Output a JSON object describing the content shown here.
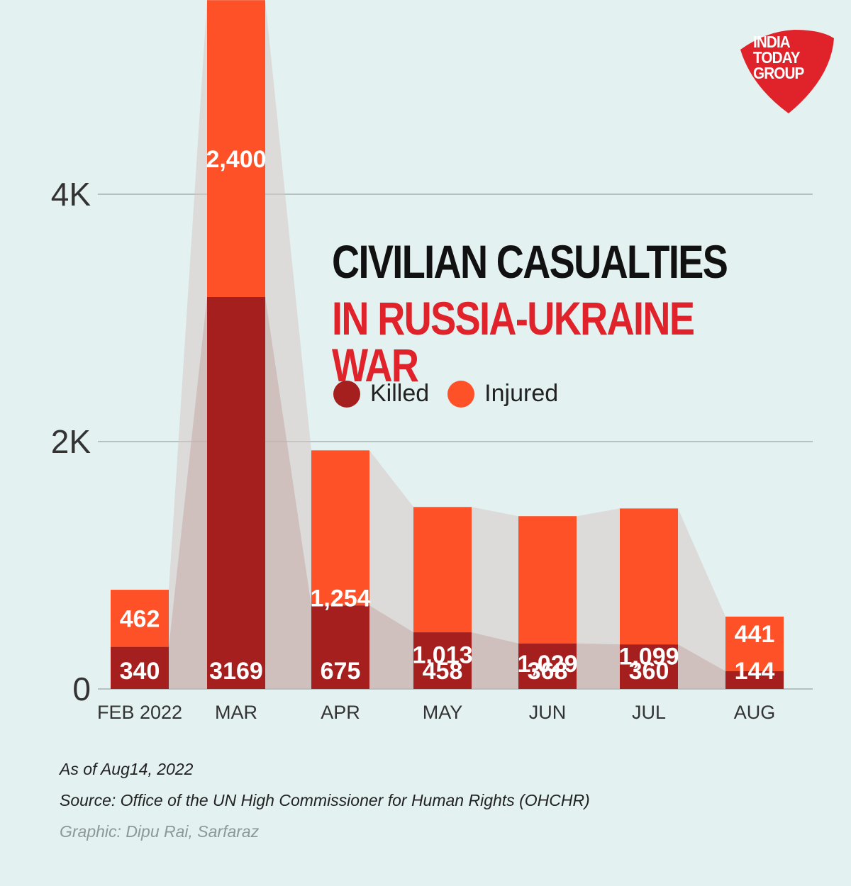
{
  "title": {
    "line1": "CIVILIAN CASUALTIES",
    "line2": "IN RUSSIA-UKRAINE WAR"
  },
  "logo": {
    "lines": [
      "INDIA",
      "TODAY",
      "GROUP"
    ],
    "color": "#e0222a"
  },
  "footer": {
    "as_of": "As of Aug14, 2022",
    "source": "Source: Office of the UN High Commissioner for Human Rights (OHCHR)",
    "credit": "Graphic: Dipu Rai, Sarfaraz"
  },
  "colors": {
    "killed": "#a61f1f",
    "injured": "#ff5128",
    "background": "#e4f1f1",
    "shade": "#d6c8c6",
    "grid": "#9aa5a5"
  },
  "chart_data": {
    "type": "bar",
    "stacked": true,
    "categories": [
      "FEB 2022",
      "MAR",
      "APR",
      "MAY",
      "JUN",
      "JUL",
      "AUG"
    ],
    "series": [
      {
        "name": "Killed",
        "values": [
          340,
          3169,
          675,
          458,
          368,
          360,
          144
        ]
      },
      {
        "name": "Injured",
        "values": [
          462,
          2400,
          1254,
          1013,
          1029,
          1099,
          441
        ]
      }
    ],
    "y_ticks": [
      {
        "value": 0,
        "label": "0"
      },
      {
        "value": 2000,
        "label": "2K"
      },
      {
        "value": 4000,
        "label": "4K"
      }
    ],
    "ylim": [
      0,
      5569
    ],
    "legend_position": "center-right",
    "grid": true,
    "xlabel": "",
    "ylabel": ""
  }
}
